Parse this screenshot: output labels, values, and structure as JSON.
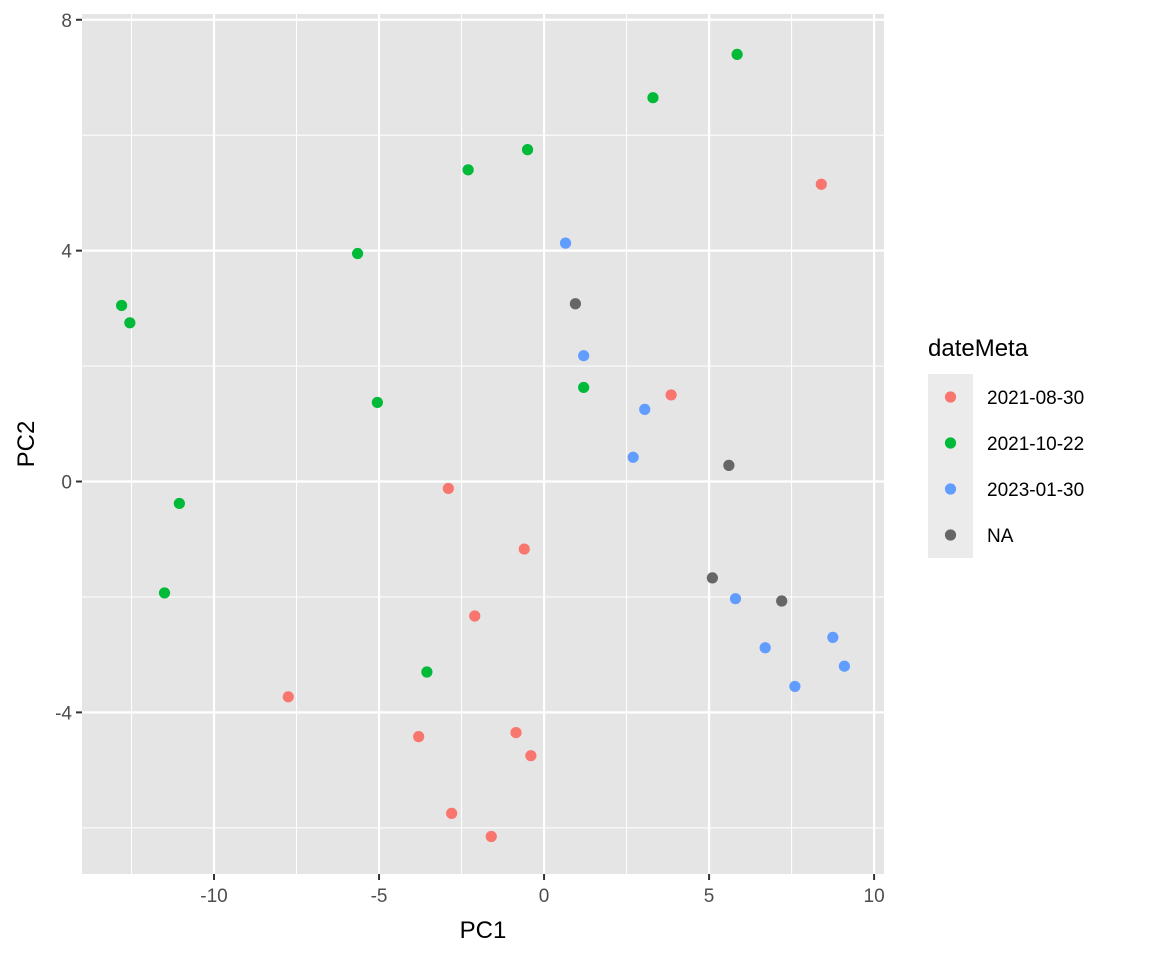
{
  "chart_data": {
    "type": "scatter",
    "title": "",
    "xlabel": "PC1",
    "ylabel": "PC2",
    "xlim": [
      -14.0,
      10.3
    ],
    "ylim": [
      -6.8,
      8.1
    ],
    "x_ticks": [
      -10,
      -5,
      0,
      5,
      10
    ],
    "x_tick_labels": [
      "-10",
      "-5",
      "0",
      "5",
      "10"
    ],
    "y_ticks": [
      -4,
      0,
      4,
      8
    ],
    "y_tick_labels": [
      "-4",
      "0",
      "4",
      "8"
    ],
    "grid": true,
    "legend": {
      "title": "dateMeta",
      "placement": "right"
    },
    "series": [
      {
        "name": "2021-08-30",
        "color": "#F8766D",
        "points": [
          {
            "x": 8.4,
            "y": 5.15
          },
          {
            "x": 3.85,
            "y": 1.5
          },
          {
            "x": -2.9,
            "y": -0.12
          },
          {
            "x": -0.6,
            "y": -1.17
          },
          {
            "x": -2.1,
            "y": -2.33
          },
          {
            "x": -7.75,
            "y": -3.73
          },
          {
            "x": -3.8,
            "y": -4.42
          },
          {
            "x": -0.85,
            "y": -4.35
          },
          {
            "x": -0.4,
            "y": -4.75
          },
          {
            "x": -2.8,
            "y": -5.75
          },
          {
            "x": -1.6,
            "y": -6.15
          }
        ]
      },
      {
        "name": "2021-10-22",
        "color": "#00BA38",
        "points": [
          {
            "x": 5.85,
            "y": 7.4
          },
          {
            "x": 3.3,
            "y": 6.65
          },
          {
            "x": -0.5,
            "y": 5.75
          },
          {
            "x": -2.3,
            "y": 5.4
          },
          {
            "x": -5.65,
            "y": 3.95
          },
          {
            "x": -12.8,
            "y": 3.05
          },
          {
            "x": -12.55,
            "y": 2.75
          },
          {
            "x": -5.05,
            "y": 1.37
          },
          {
            "x": 1.2,
            "y": 1.63
          },
          {
            "x": -11.05,
            "y": -0.38
          },
          {
            "x": -11.5,
            "y": -1.93
          },
          {
            "x": -3.55,
            "y": -3.3
          }
        ]
      },
      {
        "name": "2023-01-30",
        "color": "#619CFF",
        "points": [
          {
            "x": 0.65,
            "y": 4.13
          },
          {
            "x": 1.2,
            "y": 2.18
          },
          {
            "x": 3.05,
            "y": 1.25
          },
          {
            "x": 2.7,
            "y": 0.42
          },
          {
            "x": 5.8,
            "y": -2.03
          },
          {
            "x": 6.7,
            "y": -2.88
          },
          {
            "x": 8.75,
            "y": -2.7
          },
          {
            "x": 9.1,
            "y": -3.2
          },
          {
            "x": 7.6,
            "y": -3.55
          }
        ]
      },
      {
        "name": "NA",
        "color": "#666666",
        "points": [
          {
            "x": 0.95,
            "y": 3.08
          },
          {
            "x": 5.6,
            "y": 0.28
          },
          {
            "x": 5.1,
            "y": -1.67
          },
          {
            "x": 7.2,
            "y": -2.07
          }
        ]
      }
    ],
    "colors": {
      "panel_background": "#E5E5E5",
      "grid_major": "#FFFFFF",
      "legend_key_background": "#EBEBEB"
    }
  }
}
